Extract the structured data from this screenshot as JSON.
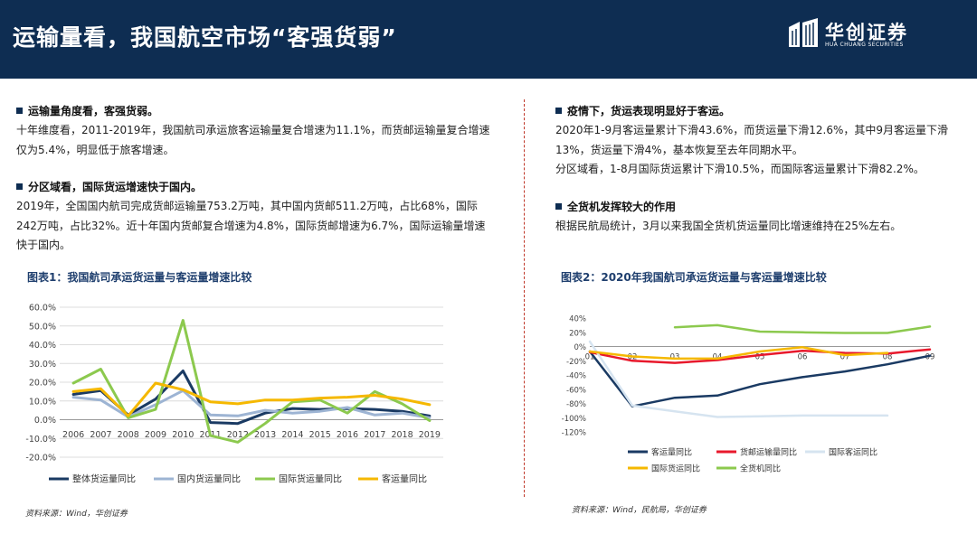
{
  "header": {
    "title": "运输量看，我国航空市场“客强货弱”"
  },
  "brand": {
    "name": "华创证券",
    "sub": "HUA CHUANG SECURITIES"
  },
  "left": {
    "h1": "运输量角度看，客强货弱。",
    "p1": "十年维度看，2011-2019年，我国航司承运旅客运输量复合增速为11.1%，而货邮运输量复合增速仅为5.4%，明显低于旅客增速。",
    "h2": "分区域看，国际货运增速快于国内。",
    "p2": "2019年，全国国内航司完成货邮运输量753.2万吨，其中国内货邮511.2万吨，占比68%，国际242万吨，占比32%。近十年国内货邮复合增速为4.8%，国际货邮增速为6.7%，国际运输量增速快于国内。"
  },
  "right": {
    "h1": "疫情下，货运表现明显好于客运。",
    "p1": "2020年1-9月客运量累计下滑43.6%，而货运量下滑12.6%，其中9月客运量下滑13%，货运量下滑4%，基本恢复至去年同期水平。",
    "p2": "分区域看，1-8月国际货运累计下滑10.5%，而国际客运量累计下滑82.2%。",
    "h2": "全货机发挥较大的作用",
    "p3": "根据民航局统计，3月以来我国全货机货运量同比增速维持在25%左右。"
  },
  "figure1": {
    "title": "图表1：我国航司承运货运量与客运量增速比较",
    "source": "资料来源：Wind，华创证券"
  },
  "figure2": {
    "title": "图表2：2020年我国航司承运货运量与客运量增速比较",
    "source": "资料来源：Wind，民航局，华创证券"
  },
  "colors": {
    "navy": "#0e2d52",
    "accent_red": "#c0392b"
  },
  "chart_data": [
    {
      "type": "line",
      "title": "图表1：我国航司承运货运量与客运量增速比较",
      "categories": [
        "2006",
        "2007",
        "2008",
        "2009",
        "2010",
        "2011",
        "2012",
        "2013",
        "2014",
        "2015",
        "2016",
        "2017",
        "2018",
        "2019"
      ],
      "y_ticks": [
        "60.0%",
        "50.0%",
        "40.0%",
        "30.0%",
        "20.0%",
        "10.0%",
        "0.0%",
        "-10.0%",
        "-20.0%"
      ],
      "ylim": [
        -20,
        60
      ],
      "grid": true,
      "legend_position": "bottom",
      "series": [
        {
          "name": "整体货运量同比",
          "color": "#1a3a63",
          "values": [
            13.5,
            15.5,
            2.5,
            11,
            26,
            -1.5,
            -2,
            3.5,
            6,
            5.5,
            6,
            5.5,
            4.5,
            2
          ]
        },
        {
          "name": "国内货运量同比",
          "color": "#9db4d3",
          "values": [
            12,
            10.5,
            1.5,
            8,
            15.5,
            2.5,
            2,
            5,
            3.5,
            4.5,
            6.5,
            2.5,
            3.5,
            1
          ]
        },
        {
          "name": "国际货运量同比",
          "color": "#8cc94e",
          "values": [
            19.5,
            27,
            1,
            5.5,
            53,
            -8.5,
            -12,
            -2,
            9.5,
            10.5,
            3.5,
            15,
            8.5,
            -0.5
          ]
        },
        {
          "name": "客运量同比",
          "color": "#f5b800",
          "values": [
            15,
            16.5,
            2,
            19.5,
            16,
            9.5,
            8.5,
            10.5,
            10.5,
            11.5,
            12,
            13,
            11,
            8
          ]
        }
      ]
    },
    {
      "type": "line",
      "title": "图表2：2020年我国航司承运货运量与客运量增速比较",
      "categories": [
        "01",
        "02",
        "03",
        "04",
        "05",
        "06",
        "07",
        "08",
        "09"
      ],
      "y_ticks": [
        "40%",
        "20%",
        "0%",
        "-20%",
        "-40%",
        "-60%",
        "-80%",
        "-100%",
        "-120%"
      ],
      "ylim": [
        -120,
        40
      ],
      "grid": false,
      "legend_position": "bottom",
      "series": [
        {
          "name": "客运量同比",
          "color": "#1a3a63",
          "values": [
            -7,
            -84,
            -72,
            -69,
            -53,
            -43,
            -35,
            -25,
            -13
          ]
        },
        {
          "name": "货邮运输量同比",
          "color": "#e8192c",
          "values": [
            -8,
            -20,
            -23,
            -19,
            -12,
            -6,
            -9,
            -10,
            -4
          ]
        },
        {
          "name": "国际客运同比",
          "color": "#d6e4f0",
          "values": [
            7,
            -83,
            -91,
            -99,
            -98,
            -97,
            -97,
            -97,
            null
          ]
        },
        {
          "name": "国际货运同比",
          "color": "#f5b800",
          "values": [
            -7,
            -14,
            -17,
            -17,
            -7,
            -1,
            -12,
            -9,
            null
          ]
        },
        {
          "name": "全货机同比",
          "color": "#8cc94e",
          "values": [
            null,
            null,
            27,
            30,
            21,
            20,
            19,
            19,
            28
          ]
        }
      ]
    }
  ]
}
